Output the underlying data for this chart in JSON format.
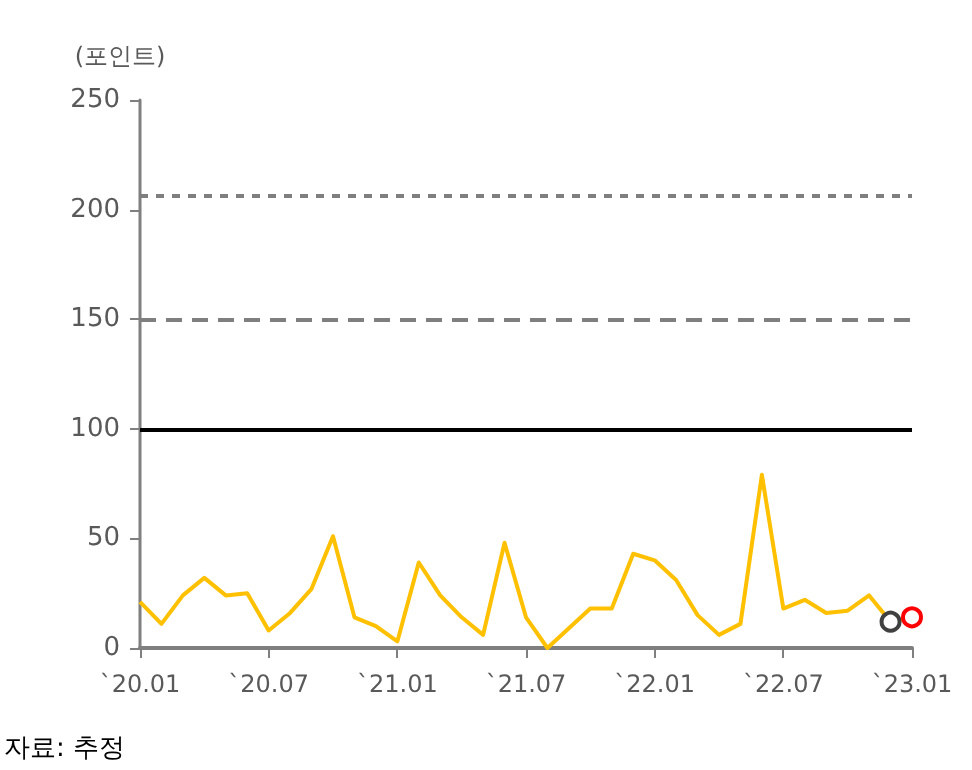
{
  "chart_data": {
    "type": "line",
    "ylabel": "(포인트)",
    "annotations": [
      "자료: 추정"
    ],
    "categories": [
      "`20.01",
      null,
      null,
      null,
      null,
      null,
      "`20.07",
      null,
      null,
      null,
      null,
      null,
      "`21.01",
      null,
      null,
      null,
      null,
      null,
      "`21.07",
      null,
      null,
      null,
      null,
      null,
      "`22.01",
      null,
      null,
      null,
      null,
      null,
      "`22.07",
      null,
      null,
      null,
      null,
      null,
      "`23.01"
    ],
    "series": [
      {
        "color": "#ffc000",
        "marker": "none",
        "values": [
          21,
          11,
          24,
          32,
          24,
          25,
          8,
          16,
          27,
          51,
          14,
          10,
          3,
          39,
          24,
          14,
          6,
          48,
          14,
          0,
          9,
          18,
          18,
          43,
          40,
          31,
          15,
          6,
          11,
          79,
          18,
          22,
          16,
          17,
          24,
          12,
          14
        ]
      },
      {
        "type": "scatter",
        "color": "#404040",
        "marker": "circle",
        "values": [
          null,
          null,
          null,
          null,
          null,
          null,
          null,
          null,
          null,
          null,
          null,
          null,
          null,
          null,
          null,
          null,
          null,
          null,
          null,
          null,
          null,
          null,
          null,
          null,
          null,
          null,
          null,
          null,
          null,
          null,
          null,
          null,
          null,
          null,
          null,
          12,
          null
        ]
      },
      {
        "type": "scatter",
        "color": "#ff0000",
        "marker": "circle",
        "values": [
          null,
          null,
          null,
          null,
          null,
          null,
          null,
          null,
          null,
          null,
          null,
          null,
          null,
          null,
          null,
          null,
          null,
          null,
          null,
          null,
          null,
          null,
          null,
          null,
          null,
          null,
          null,
          null,
          null,
          null,
          null,
          null,
          null,
          null,
          null,
          null,
          14
        ]
      }
    ],
    "ylim": [
      0,
      250
    ],
    "yticks": [
      0,
      50,
      100,
      150,
      200,
      250
    ],
    "grid": false,
    "ref_lines": [
      {
        "axis": "y",
        "value": 100,
        "color": "#000000",
        "line_style": "solid"
      },
      {
        "axis": "y",
        "value": 150,
        "color": "#7f7f7f",
        "line_style": "dashed"
      },
      {
        "axis": "y",
        "value": 206,
        "color": "#7f7f7f",
        "line_style": "dotted"
      }
    ]
  }
}
